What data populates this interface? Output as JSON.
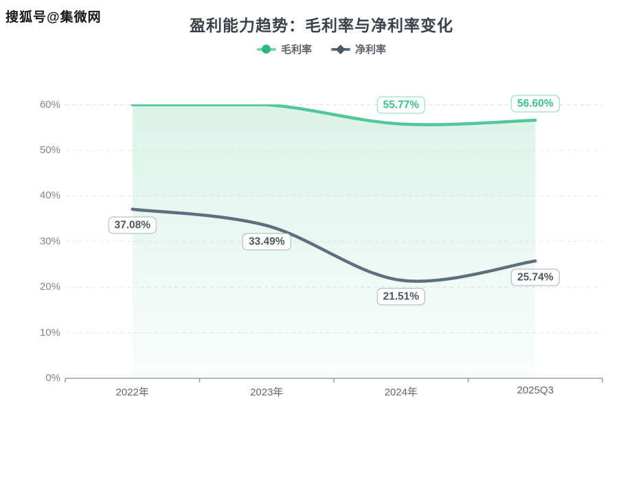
{
  "watermark": {
    "text": "搜狐号@集微网"
  },
  "chart_data": {
    "type": "line",
    "title": "盈利能力趋势：毛利率与净利率变化",
    "categories": [
      "2022年",
      "2023年",
      "2024年",
      "2025Q3"
    ],
    "series": [
      {
        "name": "毛利率",
        "key": "gross-margin",
        "color": "#53c69a",
        "marker": "circle",
        "marker_color": "#2eb87e",
        "area": true,
        "values": [
          null,
          null,
          55.77,
          56.6
        ],
        "labels": [
          "",
          "",
          "55.77%",
          "56.60%"
        ],
        "clipped_note": "2022 and 2023 values lie above the 60% axis maximum; the line renders clipped along the top gridline and no labels are shown for them"
      },
      {
        "name": "净利率",
        "key": "net-margin",
        "color": "#5e6e7e",
        "marker": "diamond",
        "marker_color": "#46586b",
        "area": false,
        "values": [
          37.08,
          33.49,
          21.51,
          25.74
        ],
        "labels": [
          "37.08%",
          "33.49%",
          "21.51%",
          "25.74%"
        ]
      }
    ],
    "ylim": [
      0,
      60
    ],
    "ytick_labels": [
      "0%",
      "10%",
      "20%",
      "30%",
      "40%",
      "50%",
      "60%"
    ],
    "grid": "horizontal-dashed",
    "legend_position": "top-center"
  }
}
